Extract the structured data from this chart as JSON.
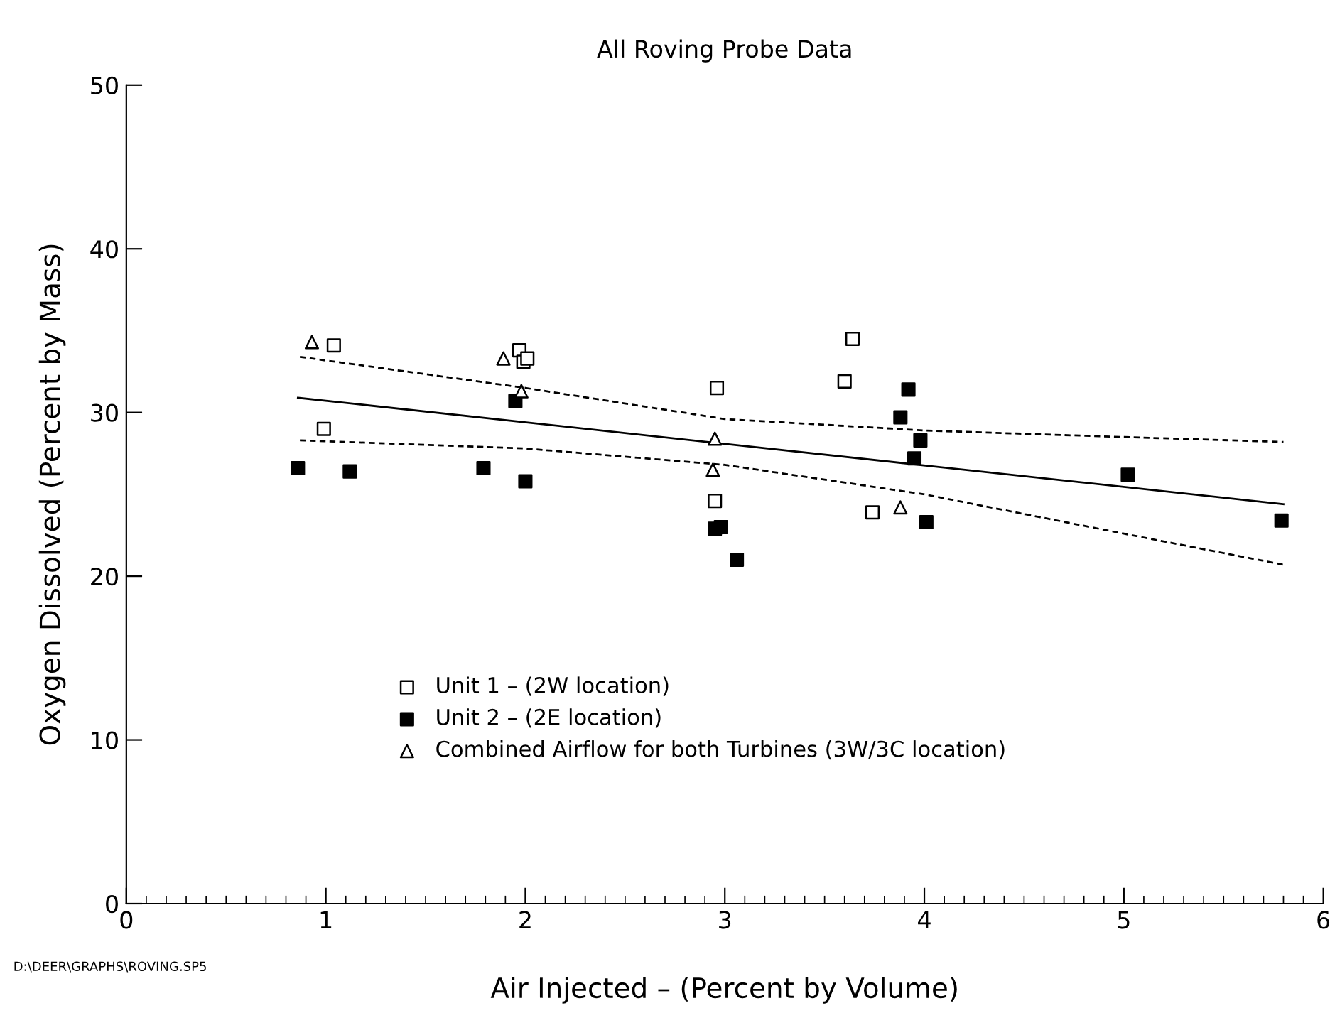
{
  "chart_data": {
    "type": "scatter",
    "title": "All Roving Probe Data",
    "xlabel": "Air Injected – (Percent by Volume)",
    "ylabel": "Oxygen Dissolved (Percent by Mass)",
    "xlim": [
      0,
      6
    ],
    "xticks": [
      0,
      1,
      2,
      3,
      4,
      5,
      6
    ],
    "ylim": [
      0,
      50
    ],
    "yticks": [
      0,
      10,
      20,
      30,
      40,
      50
    ],
    "grid": false,
    "legend": "bottom left",
    "annotations": [
      "D:\\DEER\\GRAPHS\\ROVING.SP5"
    ],
    "series": [
      {
        "name": "Unit 1 – (2W location)",
        "color": "#000000",
        "marker": "square",
        "x": [
          1.04,
          0.99,
          1.97,
          1.99,
          2.01,
          2.96,
          2.95,
          3.64,
          3.6,
          3.74
        ],
        "values": [
          34.1,
          29.0,
          33.8,
          33.1,
          33.3,
          31.5,
          24.6,
          34.5,
          31.9,
          23.9
        ]
      },
      {
        "name": "Unit 2 – (2E location)",
        "color": "#000000",
        "marker": "square",
        "x": [
          0.86,
          1.12,
          1.79,
          1.95,
          2.0,
          2.95,
          2.98,
          3.06,
          3.88,
          3.92,
          3.95,
          3.98,
          4.01,
          5.02,
          5.79
        ],
        "values": [
          26.6,
          26.4,
          26.6,
          30.7,
          25.8,
          22.9,
          23.0,
          21.0,
          29.7,
          31.4,
          27.2,
          28.3,
          23.3,
          26.2,
          23.4
        ]
      },
      {
        "name": "Combined Airflow for both Turbines (3W/3C location)",
        "color": "#000000",
        "marker": "triangle",
        "x": [
          0.93,
          1.89,
          1.98,
          2.95,
          2.94,
          3.88
        ],
        "values": [
          34.3,
          33.3,
          31.3,
          28.4,
          26.5,
          24.2
        ]
      },
      {
        "type": "line",
        "color": "#000000",
        "line_style": "solid",
        "x": [
          0.86,
          5.8
        ],
        "values": [
          30.9,
          24.4
        ]
      },
      {
        "type": "line",
        "color": "#000000",
        "line_style": "dashed",
        "x": [
          0.87,
          2,
          3,
          4,
          5,
          5.8
        ],
        "values": [
          33.4,
          31.5,
          29.6,
          28.9,
          28.5,
          28.2
        ]
      },
      {
        "type": "line",
        "color": "#000000",
        "line_style": "dashed",
        "x": [
          0.87,
          2,
          3,
          4,
          5,
          5.8
        ],
        "values": [
          28.3,
          27.8,
          26.8,
          25.0,
          22.6,
          20.7
        ]
      }
    ]
  }
}
